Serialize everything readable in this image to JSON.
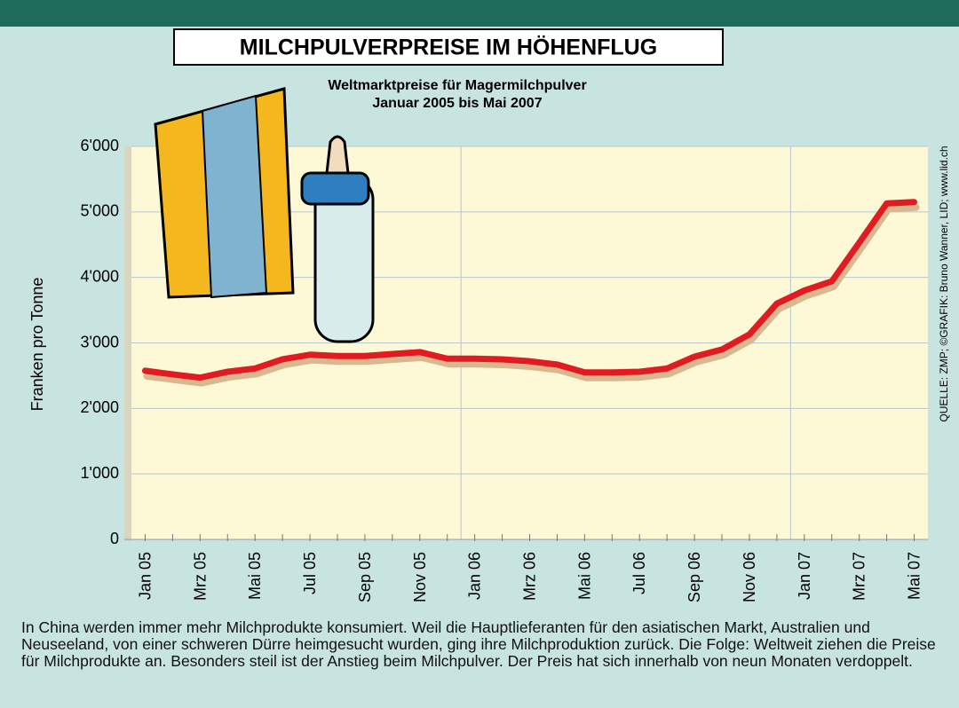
{
  "chart_data": {
    "type": "line",
    "title": "MILCHPULVERPREISE IM HÖHENFLUG",
    "subtitle": [
      "Weltmarktpreise für Magermilchpulver",
      "Januar 2005 bis Mai 2007"
    ],
    "y_label": "Franken pro Tonne",
    "source": "QUELLE: ZMP; ©GRAFIK: Bruno Wanner, LID; www.lid.ch",
    "note": "In China werden immer mehr Milchprodukte konsumiert. Weil die Hauptlieferanten für den asiatischen Markt, Australien und Neuseeland, von einer schweren Dürre heimgesucht wurden, ging ihre Milchproduktion zurück. Die Folge: Weltweit ziehen die Preise für Milchprodukte an. Besonders steil ist der Anstieg beim Milchpulver. Der Preis hat sich innerhalb von neun Monaten verdoppelt.",
    "categories": [
      "Jan 05",
      null,
      "Mrz 05",
      null,
      "Mai 05",
      null,
      "Jul 05",
      null,
      "Sep 05",
      null,
      "Nov 05",
      null,
      "Jan 06",
      null,
      "Mrz 06",
      null,
      "Mai 06",
      null,
      "Jul 06",
      null,
      "Sep 06",
      null,
      "Nov 06",
      null,
      "Jan 07",
      null,
      "Mrz 07",
      null,
      "Mai 07"
    ],
    "series": [
      {
        "color": "#e01b22",
        "values": [
          2575,
          2520,
          2470,
          2560,
          2610,
          2750,
          2820,
          2800,
          2800,
          2830,
          2860,
          2760,
          2760,
          2750,
          2720,
          2670,
          2550,
          2550,
          2560,
          2610,
          2790,
          2900,
          3130,
          3600,
          3800,
          3940,
          4530,
          5130,
          5150
        ]
      }
    ],
    "ylim": [
      0,
      6000
    ],
    "yticks": [
      0,
      {
        "value": 1000,
        "label": "1'000"
      },
      {
        "value": 2000,
        "label": "2'000"
      },
      {
        "value": 3000,
        "label": "3'000"
      },
      {
        "value": 4000,
        "label": "4'000"
      },
      {
        "value": 5000,
        "label": "5'000"
      },
      {
        "value": 6000,
        "label": "6'000"
      }
    ],
    "grid": true
  }
}
